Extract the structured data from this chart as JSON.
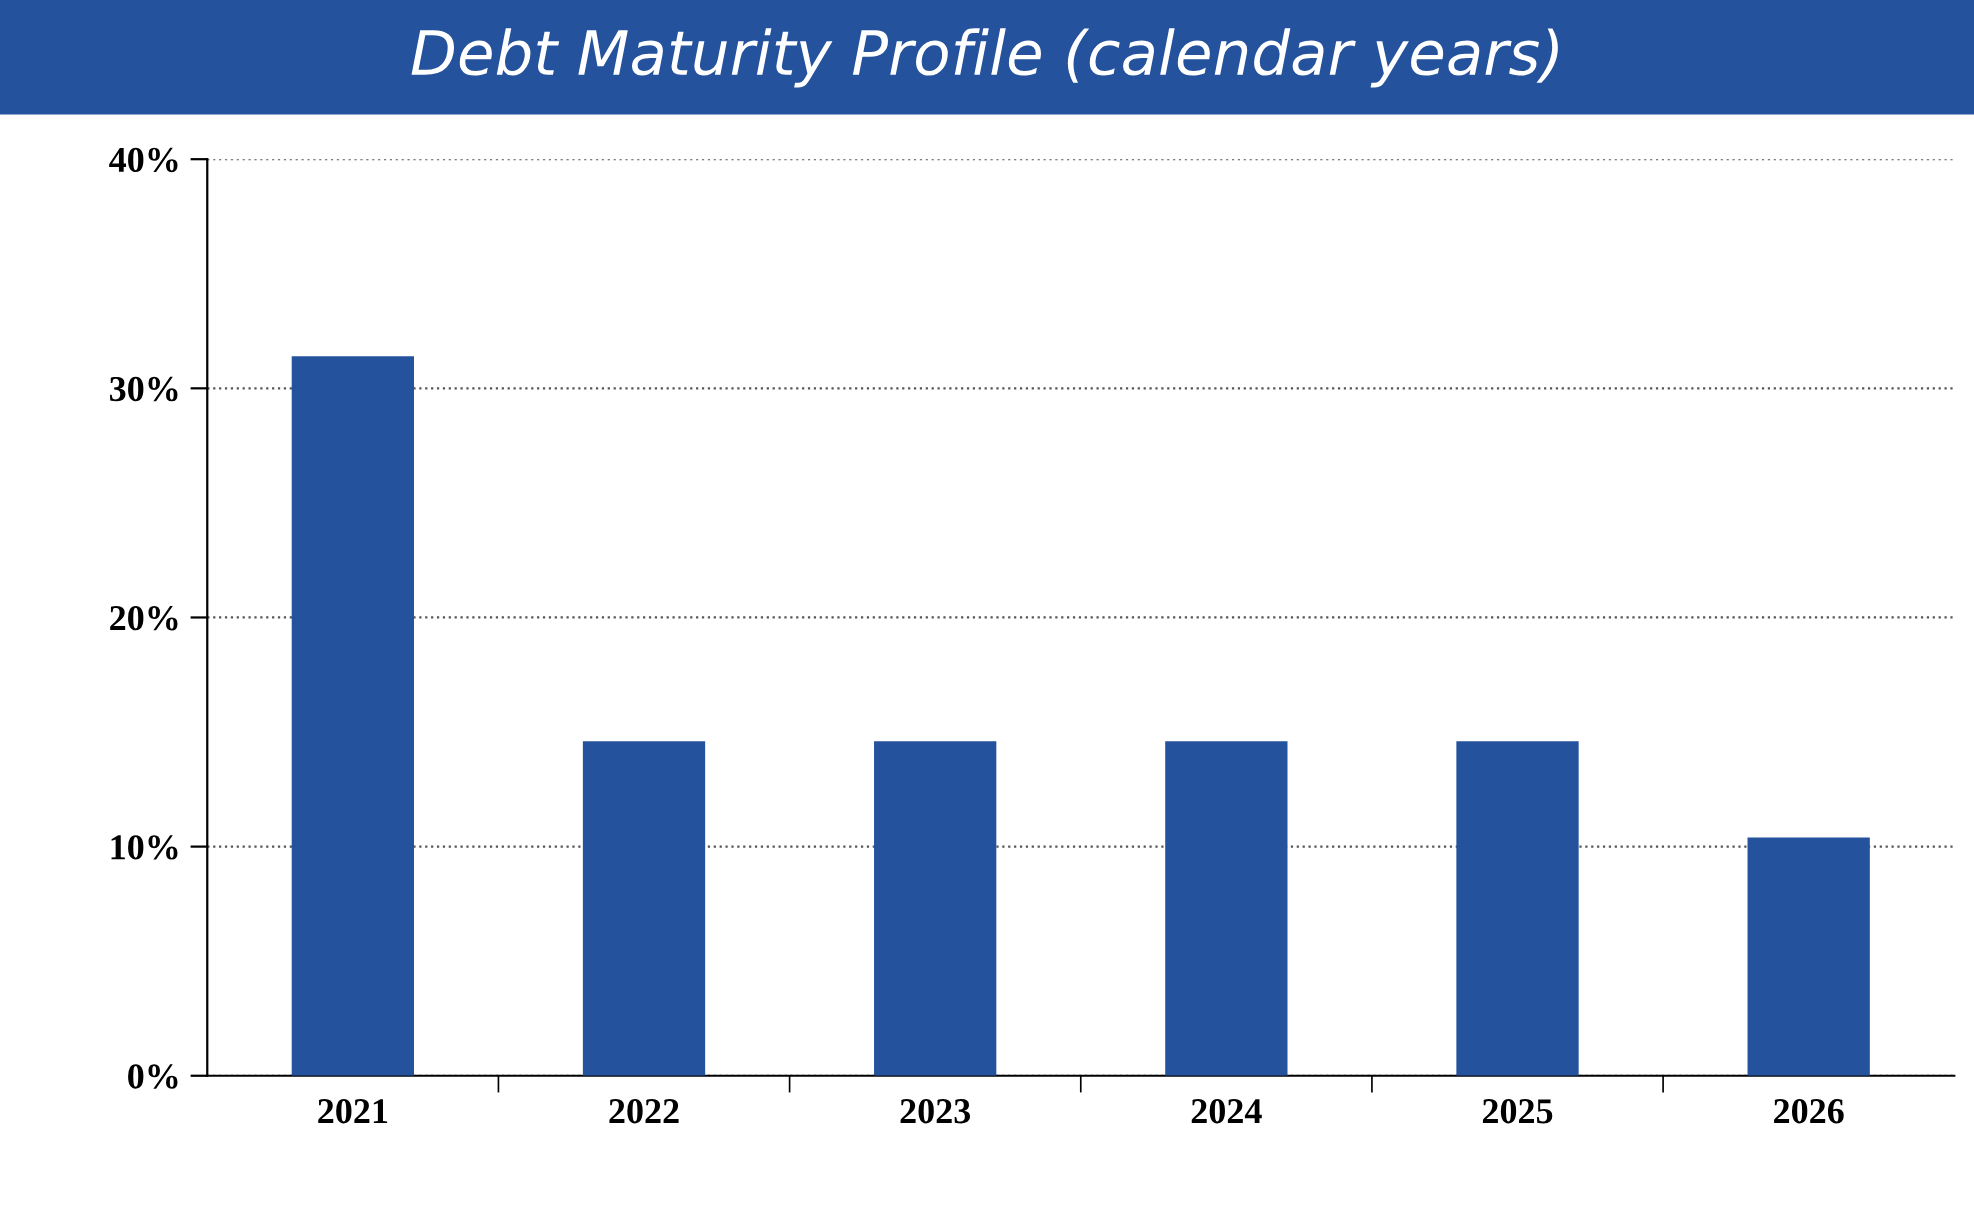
{
  "chart_data": {
    "type": "bar",
    "title": "Debt Maturity Profile (calendar years)",
    "categories": [
      "2021",
      "2022",
      "2023",
      "2024",
      "2025",
      "2026"
    ],
    "values": [
      31.4,
      14.6,
      14.6,
      14.6,
      14.6,
      10.4
    ],
    "color": "#24529c",
    "ylim": [
      0,
      40
    ],
    "yticks": [
      {
        "value": 0,
        "label": "0%"
      },
      {
        "value": 10,
        "label": "10%"
      },
      {
        "value": 20,
        "label": "20%"
      },
      {
        "value": 30,
        "label": "30%"
      },
      {
        "value": 40,
        "label": "40%"
      }
    ],
    "grid": "y"
  }
}
